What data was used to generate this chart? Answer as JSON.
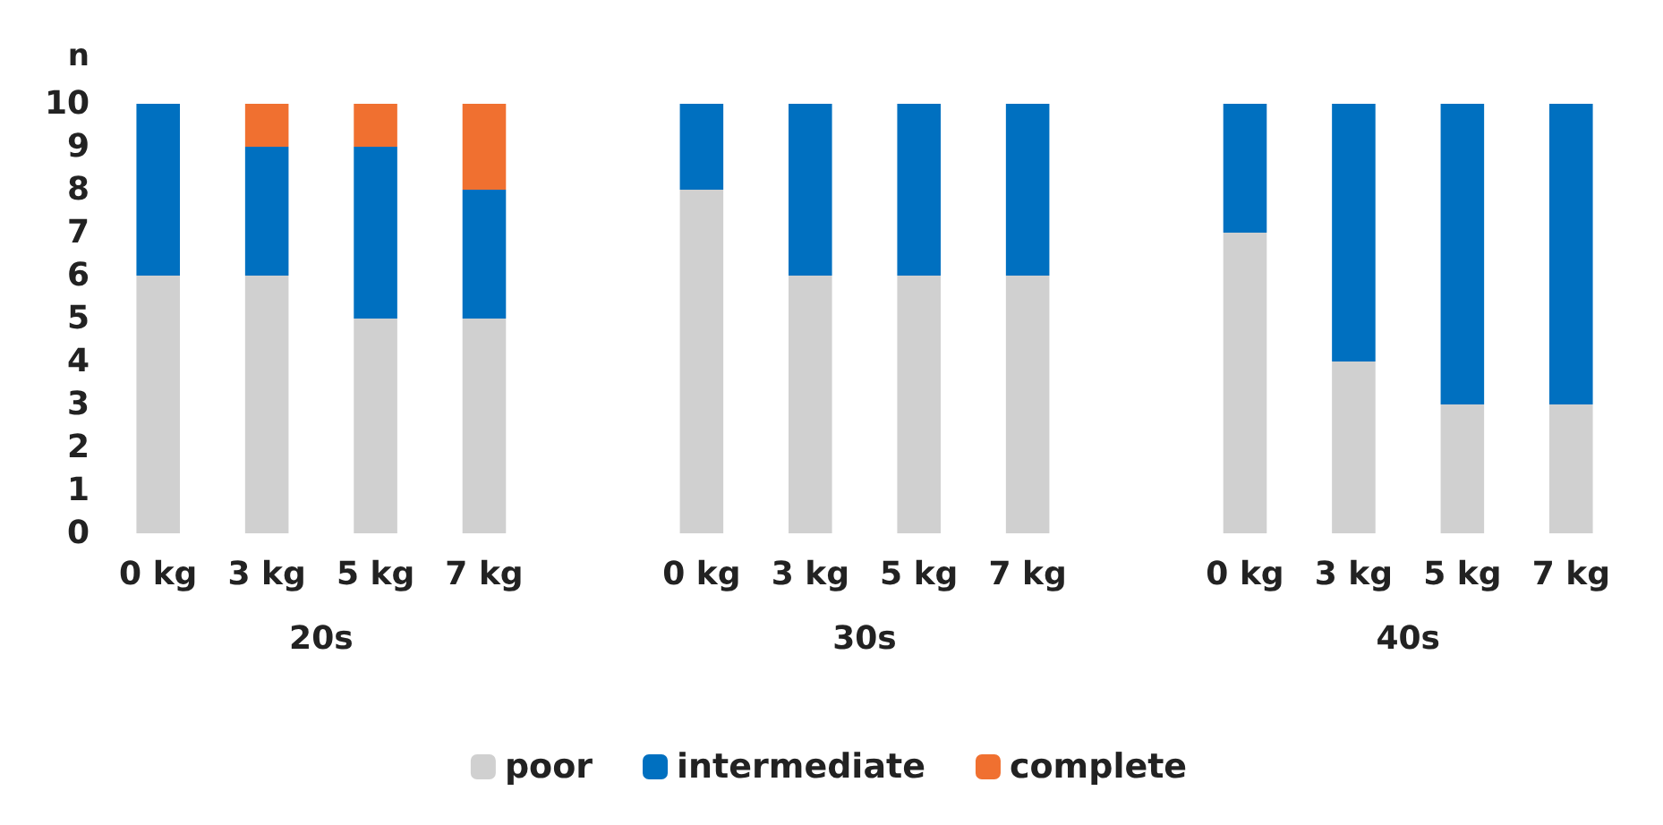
{
  "chart_data": {
    "type": "bar",
    "stacked": true,
    "ylabel": "n",
    "categories": [
      "0 kg",
      "3 kg",
      "5 kg",
      "7 kg",
      null,
      "0 kg",
      "3 kg",
      "5 kg",
      "7 kg",
      null,
      "0 kg",
      "3 kg",
      "5 kg",
      "7 kg"
    ],
    "series": [
      {
        "name": "poor",
        "color": "#d0d0d0",
        "values": [
          6,
          6,
          5,
          5,
          null,
          8,
          6,
          6,
          6,
          null,
          7,
          4,
          3,
          3
        ]
      },
      {
        "name": "intermediate",
        "color": "#0070c0",
        "values": [
          4,
          3,
          4,
          3,
          null,
          2,
          4,
          4,
          4,
          null,
          3,
          6,
          7,
          7
        ]
      },
      {
        "name": "complete",
        "color": "#f07030",
        "values": [
          0,
          1,
          1,
          2,
          null,
          0,
          0,
          0,
          0,
          null,
          0,
          0,
          0,
          0
        ]
      }
    ],
    "ylim": [
      0,
      10
    ],
    "yticks": [
      0,
      1,
      2,
      3,
      4,
      5,
      6,
      7,
      8,
      9,
      10
    ],
    "grid": false,
    "legend": "bottom",
    "annotations": [
      "20s",
      "30s",
      "40s"
    ]
  }
}
